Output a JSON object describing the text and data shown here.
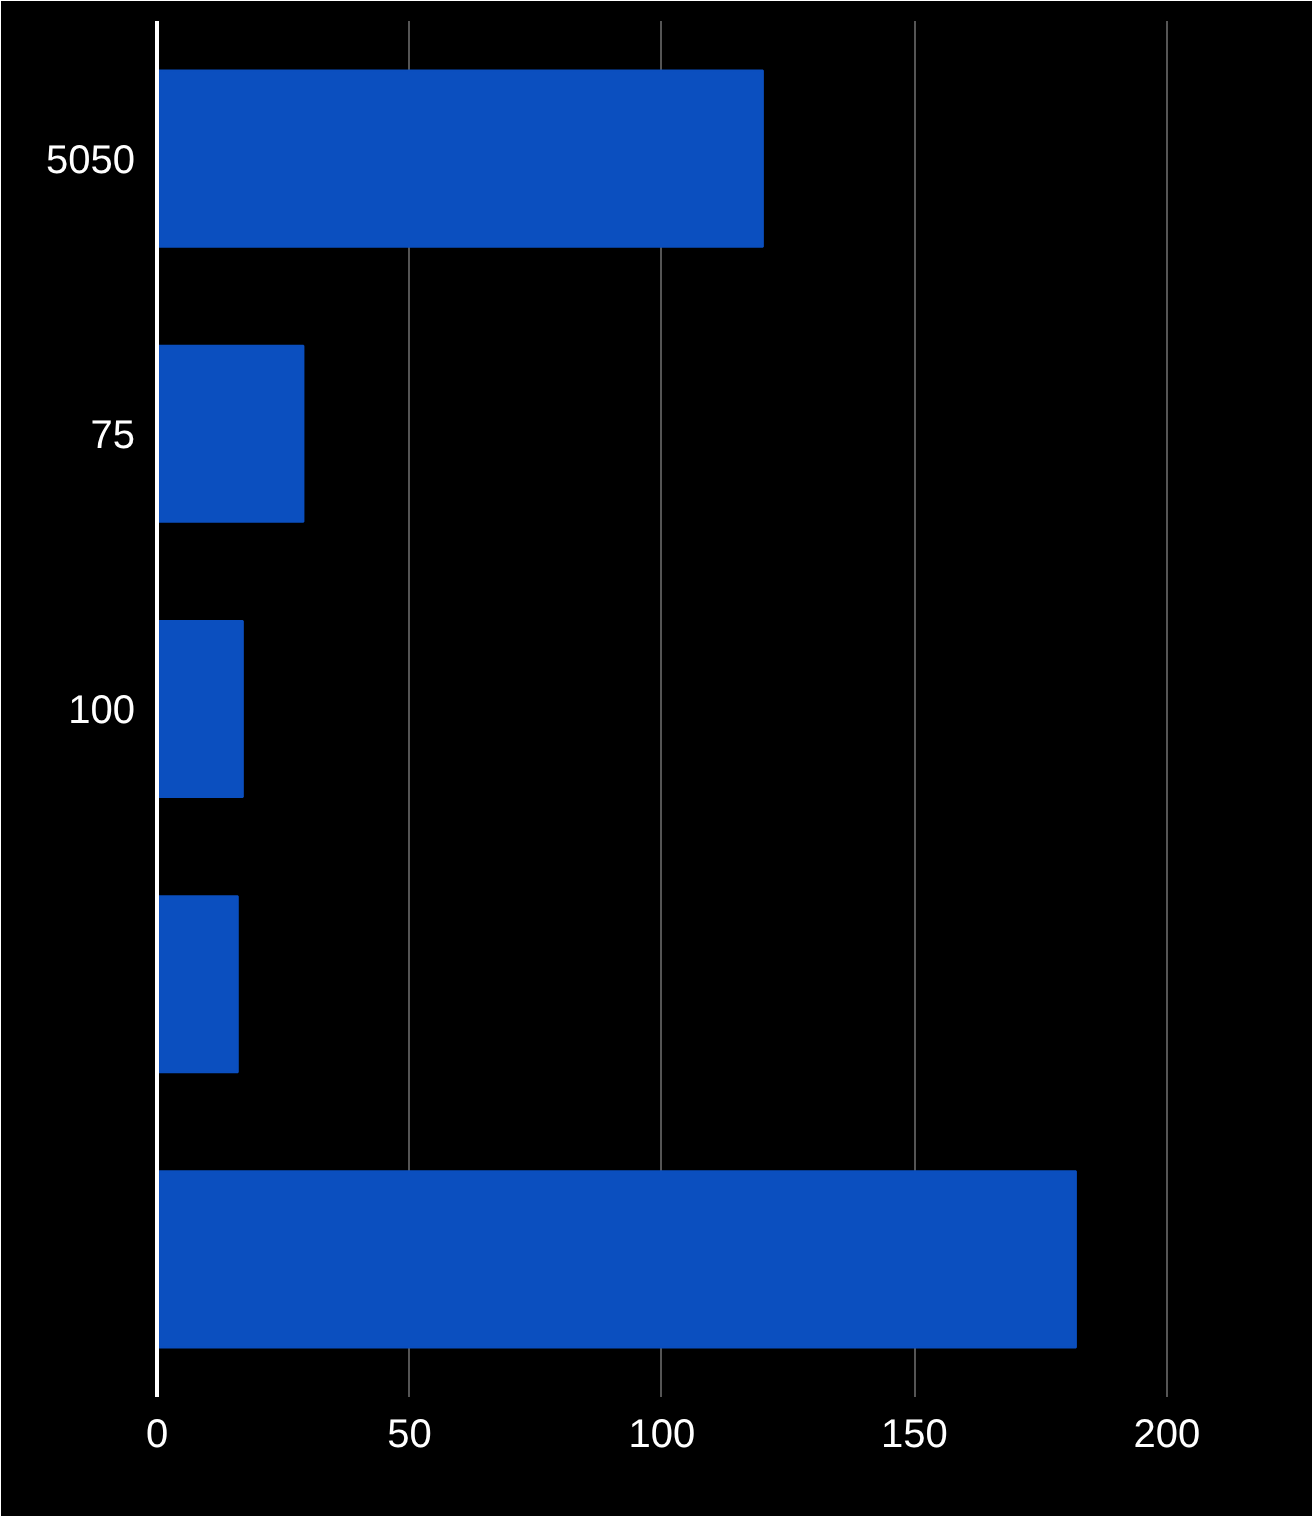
{
  "chart_data": {
    "type": "bar",
    "orientation": "horizontal",
    "categories": [
      "5050",
      "75",
      "100",
      null,
      null
    ],
    "series": [
      {
        "color": "#0b4fbf",
        "values": [
          120,
          29,
          17,
          16,
          182
        ]
      }
    ],
    "xlim": [
      0,
      225
    ],
    "xticks": [
      0,
      50,
      100,
      150,
      200
    ],
    "grid": "x"
  }
}
